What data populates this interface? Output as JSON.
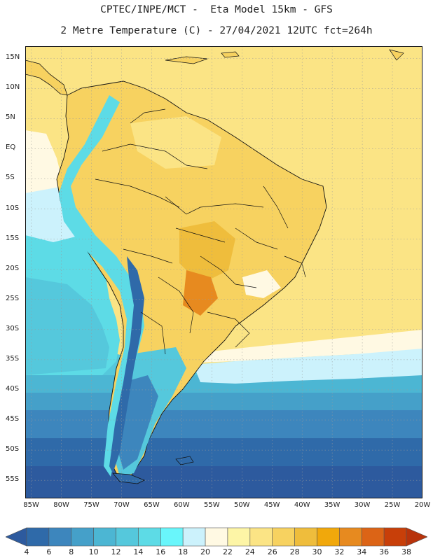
{
  "header": {
    "title_line1": "CPTEC/INPE/MCT -  Eta Model 15km - GFS",
    "title_line2": "2 Metre Temperature (C) - 27/04/2021 12UTC fct=264h"
  },
  "map": {
    "region": "South America",
    "lat_ticks": [
      "15N",
      "10N",
      "5N",
      "EQ",
      "5S",
      "10S",
      "15S",
      "20S",
      "25S",
      "30S",
      "35S",
      "40S",
      "45S",
      "50S",
      "55S"
    ],
    "lat_values": [
      15,
      10,
      5,
      0,
      -5,
      -10,
      -15,
      -20,
      -25,
      -30,
      -35,
      -40,
      -45,
      -50,
      -55
    ],
    "lon_ticks": [
      "85W",
      "80W",
      "75W",
      "70W",
      "65W",
      "60W",
      "55W",
      "50W",
      "45W",
      "40W",
      "35W",
      "30W",
      "25W",
      "20W"
    ],
    "lon_values": [
      -85,
      -80,
      -75,
      -70,
      -65,
      -60,
      -55,
      -50,
      -45,
      -40,
      -35,
      -30,
      -25,
      -20
    ],
    "lat_range": [
      -58,
      17
    ],
    "lon_range": [
      -86,
      -20
    ],
    "gridlines": true
  },
  "colorbar": {
    "labels": [
      "4",
      "6",
      "8",
      "10",
      "12",
      "14",
      "16",
      "18",
      "20",
      "22",
      "24",
      "26",
      "28",
      "30",
      "32",
      "34",
      "36",
      "38"
    ],
    "bins": [
      {
        "range": "<4",
        "color": "#2d5a9e"
      },
      {
        "range": "4-6",
        "color": "#2f6aa9"
      },
      {
        "range": "6-8",
        "color": "#3d86bd"
      },
      {
        "range": "8-10",
        "color": "#45a0c9"
      },
      {
        "range": "10-12",
        "color": "#4cb6d3"
      },
      {
        "range": "12-14",
        "color": "#55c8dc"
      },
      {
        "range": "14-16",
        "color": "#5ddbe6"
      },
      {
        "range": "16-18",
        "color": "#69f6fb"
      },
      {
        "range": "18-20",
        "color": "#ccf2fc"
      },
      {
        "range": "20-22",
        "color": "#fff9e3"
      },
      {
        "range": "22-24",
        "color": "#fdf5a6"
      },
      {
        "range": "24-26",
        "color": "#fbe485"
      },
      {
        "range": "26-28",
        "color": "#f7d260"
      },
      {
        "range": "28-30",
        "color": "#efbd3c"
      },
      {
        "range": "30-32",
        "color": "#f1a80b"
      },
      {
        "range": "32-34",
        "color": "#e78a1f"
      },
      {
        "range": "34-36",
        "color": "#dc6416"
      },
      {
        "range": "36-38",
        "color": "#c83f09"
      },
      {
        "range": ">38",
        "color": "#b8330b"
      }
    ]
  },
  "colors": {
    "ocean_cold": "#2d5a9e",
    "ocean_warm": "#fbe485",
    "land_warm": "#f7d260",
    "andes_cold": "#5ddbe6",
    "border": "#111111",
    "grid": "#9a9a9a"
  }
}
